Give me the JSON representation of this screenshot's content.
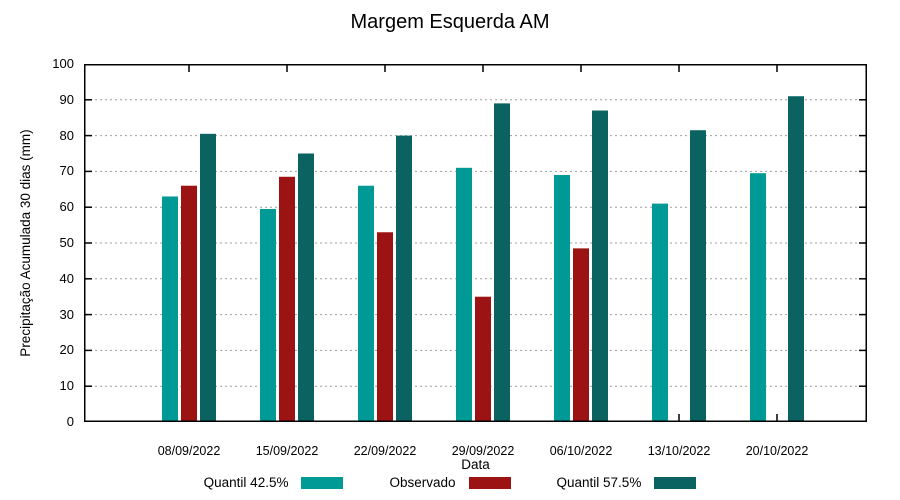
{
  "chart_data": {
    "type": "bar",
    "title": "Margem Esquerda AM",
    "xlabel": "Data",
    "ylabel": "Precipitação Acumulada 30 dias (mm)",
    "categories": [
      "08/09/2022",
      "15/09/2022",
      "22/09/2022",
      "29/09/2022",
      "06/10/2022",
      "13/10/2022",
      "20/10/2022"
    ],
    "series": [
      {
        "name": "Quantil 42.5%",
        "color": "#009A96",
        "values": [
          63,
          59.5,
          66,
          71,
          69,
          61,
          69.5
        ]
      },
      {
        "name": "Observado",
        "color": "#9B1313",
        "values": [
          66,
          68.5,
          53,
          35,
          48.5,
          null,
          null
        ]
      },
      {
        "name": "Quantil 57.5%",
        "color": "#0A6361",
        "values": [
          80.5,
          75,
          80,
          89,
          87,
          81.5,
          91
        ]
      }
    ],
    "ylim": [
      0,
      100
    ],
    "ytick_step": 10,
    "grid": "horizontal dotted gridlines, boxed plot with mirrored inward ticks",
    "legend_position": "bottom"
  },
  "colors": {
    "background": "#FFFFFF",
    "axis": "#000000",
    "grid": "#9E9E9E",
    "text": "#000000"
  }
}
